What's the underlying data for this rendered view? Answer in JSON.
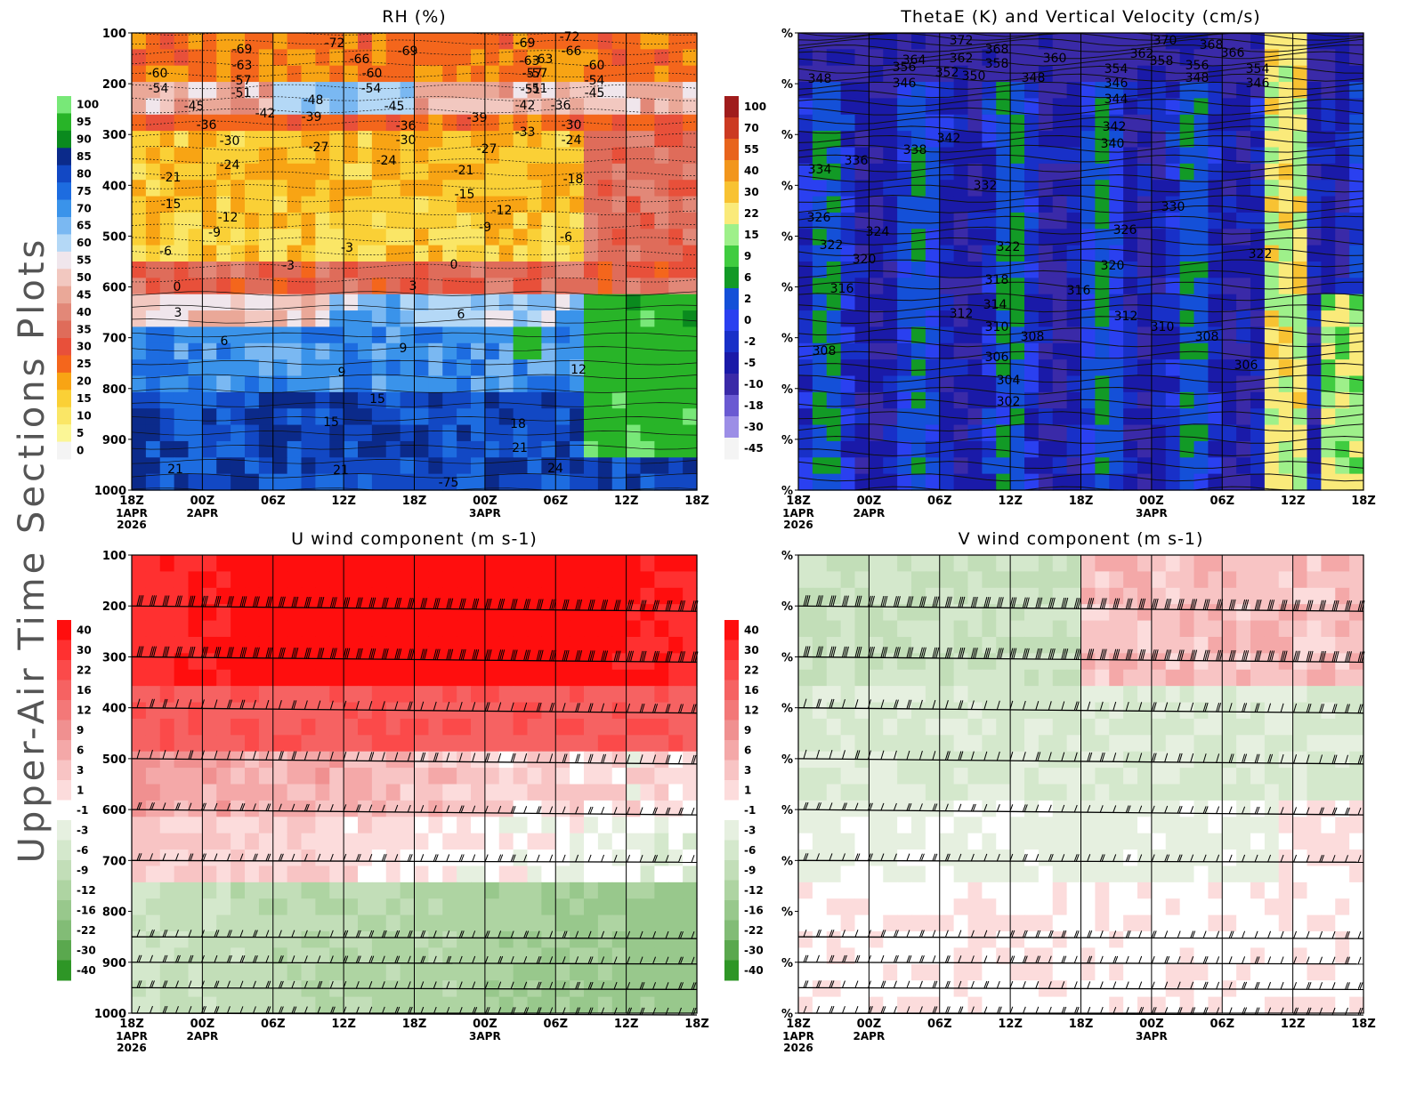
{
  "side_title": "Upper-Air Time Sections Plots",
  "pressure_levels": [
    1000,
    900,
    800,
    700,
    600,
    500,
    400,
    300,
    200,
    100
  ],
  "x_ticks": [
    {
      "label": "18Z",
      "sub": [
        "1APR",
        "2026"
      ]
    },
    {
      "label": "00Z",
      "sub": [
        "2APR"
      ]
    },
    {
      "label": "06Z",
      "sub": []
    },
    {
      "label": "12Z",
      "sub": []
    },
    {
      "label": "18Z",
      "sub": []
    },
    {
      "label": "00Z",
      "sub": [
        "3APR"
      ]
    },
    {
      "label": "06Z",
      "sub": []
    },
    {
      "label": "12Z",
      "sub": []
    },
    {
      "label": "18Z",
      "sub": []
    }
  ],
  "chart_data": [
    {
      "id": "rh",
      "type": "heatmap",
      "title": "RH (%)",
      "y_axis": "pressure_hPa",
      "y_tick_style": "numbers",
      "colorbar": {
        "labels": [
          "100",
          "95",
          "90",
          "85",
          "80",
          "75",
          "70",
          "65",
          "60",
          "55",
          "50",
          "45",
          "40",
          "35",
          "30",
          "25",
          "20",
          "15",
          "10",
          "5",
          "0"
        ],
        "colors": [
          "#78e878",
          "#28b428",
          "#0a8a1e",
          "#0b2a8a",
          "#1248c4",
          "#1d6ce0",
          "#3a93ea",
          "#7ab8f2",
          "#b4d8f6",
          "#f0e6ec",
          "#f2c8c0",
          "#eaa898",
          "#e28878",
          "#df6c5a",
          "#e8503a",
          "#f4661c",
          "#f8a414",
          "#fad036",
          "#fae666",
          "#fbf696",
          "#f4f4f4"
        ]
      },
      "contour_labels": [
        "-72",
        "-69",
        "-69",
        "-66",
        "-63",
        "-63",
        "-60",
        "-60",
        "-57",
        "-57",
        "-54",
        "-54",
        "-51",
        "-51",
        "-48",
        "-45",
        "-45",
        "-42",
        "-42",
        "-39",
        "-39",
        "-36",
        "-36",
        "-33",
        "-30",
        "-30",
        "-27",
        "-27",
        "-24",
        "-24",
        "-21",
        "-21",
        "-18",
        "-15",
        "-15",
        "-12",
        "-12",
        "-9",
        "-9",
        "-6",
        "-6",
        "-3",
        "-3",
        "0",
        "0",
        "3",
        "3",
        "6",
        "6",
        "9",
        "9",
        "12",
        "15",
        "15",
        "18",
        "21",
        "21",
        "21",
        "24",
        "-75",
        "-72",
        "-69",
        "-66",
        "-63",
        "-60",
        "-57",
        "-54",
        "-51",
        "-45",
        "-36",
        "-30",
        "-24"
      ]
    },
    {
      "id": "thetae",
      "type": "heatmap",
      "title": "ThetaE (K) and Vertical Velocity (cm/s)",
      "y_axis": "pressure_hPa",
      "y_tick_style": "percent",
      "colorbar": {
        "labels": [
          "100",
          "70",
          "55",
          "40",
          "30",
          "22",
          "15",
          "9",
          "6",
          "2",
          "0",
          "-2",
          "-5",
          "-10",
          "-18",
          "-30",
          "-45"
        ],
        "colors": [
          "#a01c1c",
          "#cc3a22",
          "#e8641c",
          "#f2961c",
          "#f8c232",
          "#faea7a",
          "#9ef08a",
          "#40cc40",
          "#129a26",
          "#1450d8",
          "#2a40f0",
          "#1830c8",
          "#1a1aa8",
          "#3a2aa8",
          "#6a5ad2",
          "#9c8ee6",
          "#f4f4f4"
        ]
      },
      "contour_labels": [
        "372",
        "370",
        "368",
        "368",
        "366",
        "364",
        "362",
        "362",
        "360",
        "358",
        "358",
        "356",
        "356",
        "354",
        "354",
        "352",
        "350",
        "348",
        "348",
        "348",
        "346",
        "346",
        "346",
        "344",
        "342",
        "342",
        "340",
        "338",
        "336",
        "334",
        "332",
        "330",
        "326",
        "326",
        "324",
        "322",
        "322",
        "322",
        "320",
        "320",
        "318",
        "316",
        "316",
        "314",
        "312",
        "312",
        "310",
        "310",
        "308",
        "308",
        "306",
        "306",
        "304",
        "302",
        "308"
      ]
    },
    {
      "id": "u",
      "type": "heatmap",
      "title": "U wind component (m s-1)",
      "y_axis": "pressure_hPa",
      "y_tick_style": "numbers",
      "colorbar": {
        "labels": [
          "40",
          "30",
          "22",
          "16",
          "12",
          "9",
          "6",
          "3",
          "1",
          "-1",
          "-3",
          "-6",
          "-9",
          "-12",
          "-16",
          "-22",
          "-30",
          "-40"
        ],
        "colors": [
          "#ff0e0e",
          "#ff3030",
          "#fb4a4a",
          "#f66262",
          "#f37878",
          "#f09090",
          "#f4a8a8",
          "#f8c4c4",
          "#fcdcdc",
          "#ffffff",
          "#e6f0e0",
          "#d4e8cc",
          "#c2deb8",
          "#aed4a2",
          "#98c88c",
          "#82bc76",
          "#5aa84e",
          "#2e9626"
        ]
      }
    },
    {
      "id": "v",
      "type": "heatmap",
      "title": "V wind component (m s-1)",
      "y_axis": "pressure_hPa",
      "y_tick_style": "percent",
      "colorbar": {
        "labels": [
          "40",
          "30",
          "22",
          "16",
          "12",
          "9",
          "6",
          "3",
          "1",
          "-1",
          "-3",
          "-6",
          "-9",
          "-12",
          "-16",
          "-22",
          "-30",
          "-40"
        ],
        "colors": [
          "#ff0e0e",
          "#ff3030",
          "#fb4a4a",
          "#f66262",
          "#f37878",
          "#f09090",
          "#f4a8a8",
          "#f8c4c4",
          "#fcdcdc",
          "#ffffff",
          "#e6f0e0",
          "#d4e8cc",
          "#c2deb8",
          "#aed4a2",
          "#98c88c",
          "#82bc76",
          "#5aa84e",
          "#2e9626"
        ]
      }
    }
  ]
}
